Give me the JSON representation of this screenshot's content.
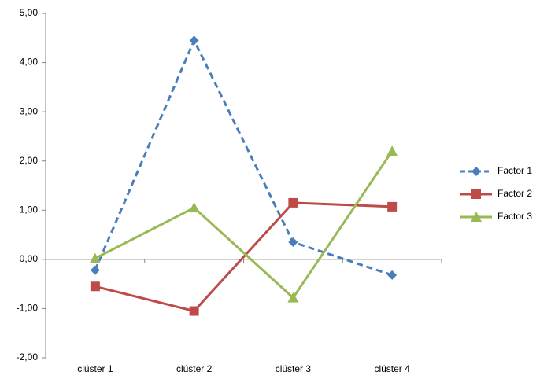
{
  "chart_data": {
    "type": "line",
    "categories": [
      "clúster 1",
      "clúster 2",
      "clúster 3",
      "clúster 4"
    ],
    "series": [
      {
        "name": "Factor 1",
        "color": "#4a7ebb",
        "dash": "dashed",
        "marker": "diamond",
        "values": [
          -0.22,
          4.45,
          0.35,
          -0.32
        ]
      },
      {
        "name": "Factor 2",
        "color": "#be4b48",
        "dash": "solid",
        "marker": "square",
        "values": [
          -0.55,
          -1.05,
          1.15,
          1.07
        ]
      },
      {
        "name": "Factor 3",
        "color": "#98b954",
        "dash": "solid",
        "marker": "triangle",
        "values": [
          0.02,
          1.05,
          -0.78,
          2.2
        ]
      }
    ],
    "ylim": [
      -2,
      5
    ],
    "yticks": [
      {
        "value": -2,
        "label": "-2,00"
      },
      {
        "value": -1,
        "label": "-1,00"
      },
      {
        "value": 0,
        "label": "0,00"
      },
      {
        "value": 1,
        "label": "1,00"
      },
      {
        "value": 2,
        "label": "2,00"
      },
      {
        "value": 3,
        "label": "3,00"
      },
      {
        "value": 4,
        "label": "4,00"
      },
      {
        "value": 5,
        "label": "5,00"
      }
    ],
    "legend": "right"
  }
}
